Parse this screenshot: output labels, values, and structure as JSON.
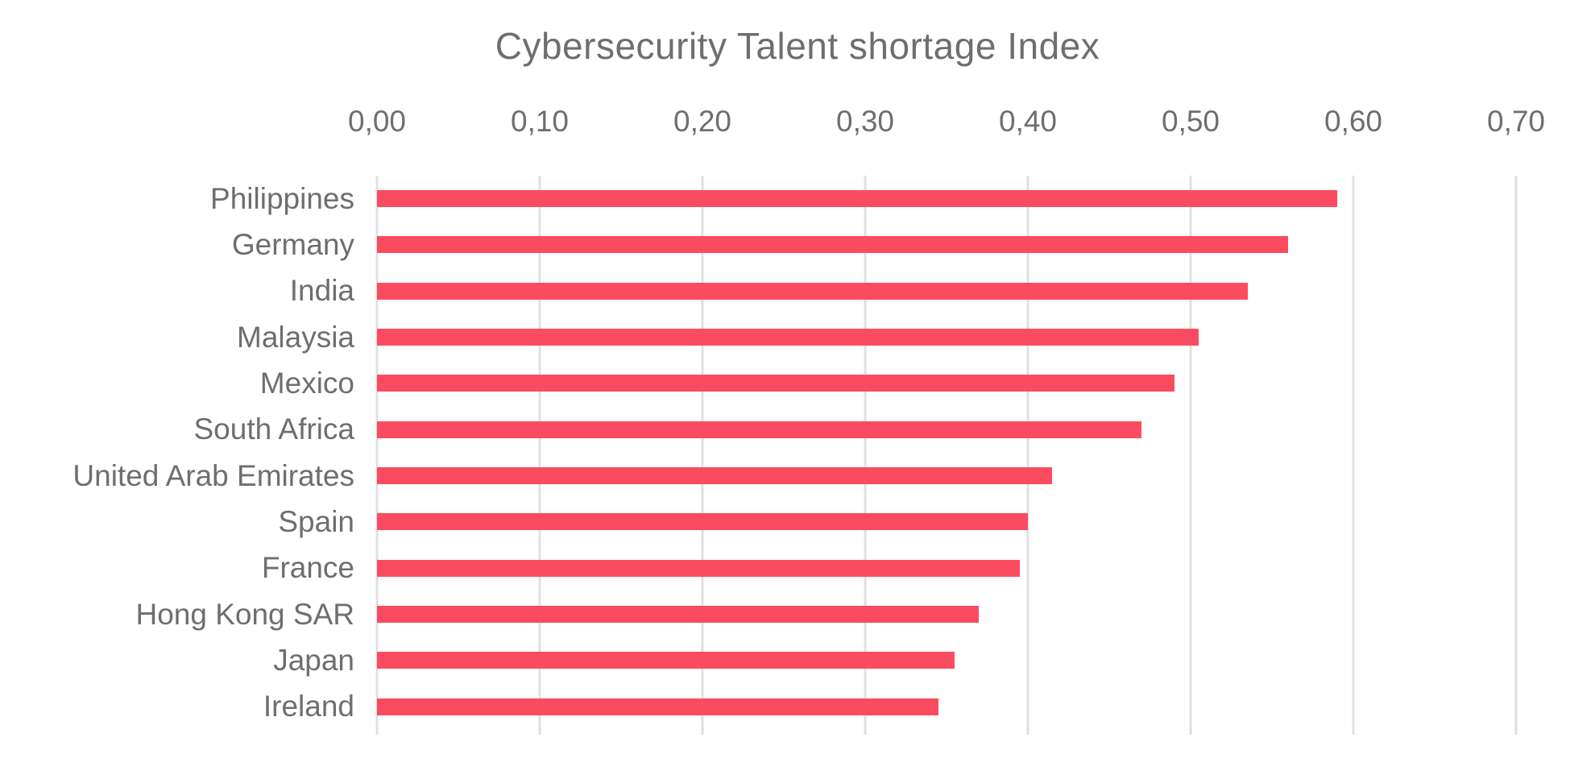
{
  "chart": {
    "title": "Cybersecurity Talent shortage Index"
  },
  "chart_data": {
    "type": "bar",
    "orientation": "horizontal",
    "title": "Cybersecurity Talent shortage Index",
    "categories": [
      "Philippines",
      "Germany",
      "India",
      "Malaysia",
      "Mexico",
      "South Africa",
      "United Arab Emirates",
      "Spain",
      "France",
      "Hong Kong SAR",
      "Japan",
      "Ireland"
    ],
    "values": [
      0.59,
      0.56,
      0.535,
      0.505,
      0.49,
      0.47,
      0.415,
      0.4,
      0.395,
      0.37,
      0.355,
      0.345
    ],
    "x_tick_labels": [
      "0,00",
      "0,10",
      "0,20",
      "0,30",
      "0,40",
      "0,50",
      "0,60",
      "0,70"
    ],
    "x_tick_values": [
      0,
      0.1,
      0.2,
      0.3,
      0.4,
      0.5,
      0.6,
      0.7
    ],
    "xlim": [
      0,
      0.7
    ],
    "decimal_separator": ",",
    "grid": "vertical",
    "legend": "none",
    "data_labels": "none",
    "colors": {
      "bar": "#FB4B60",
      "text": "#6E6E6E",
      "gridline": "#E0E0E0",
      "background": "#FFFFFF"
    }
  }
}
